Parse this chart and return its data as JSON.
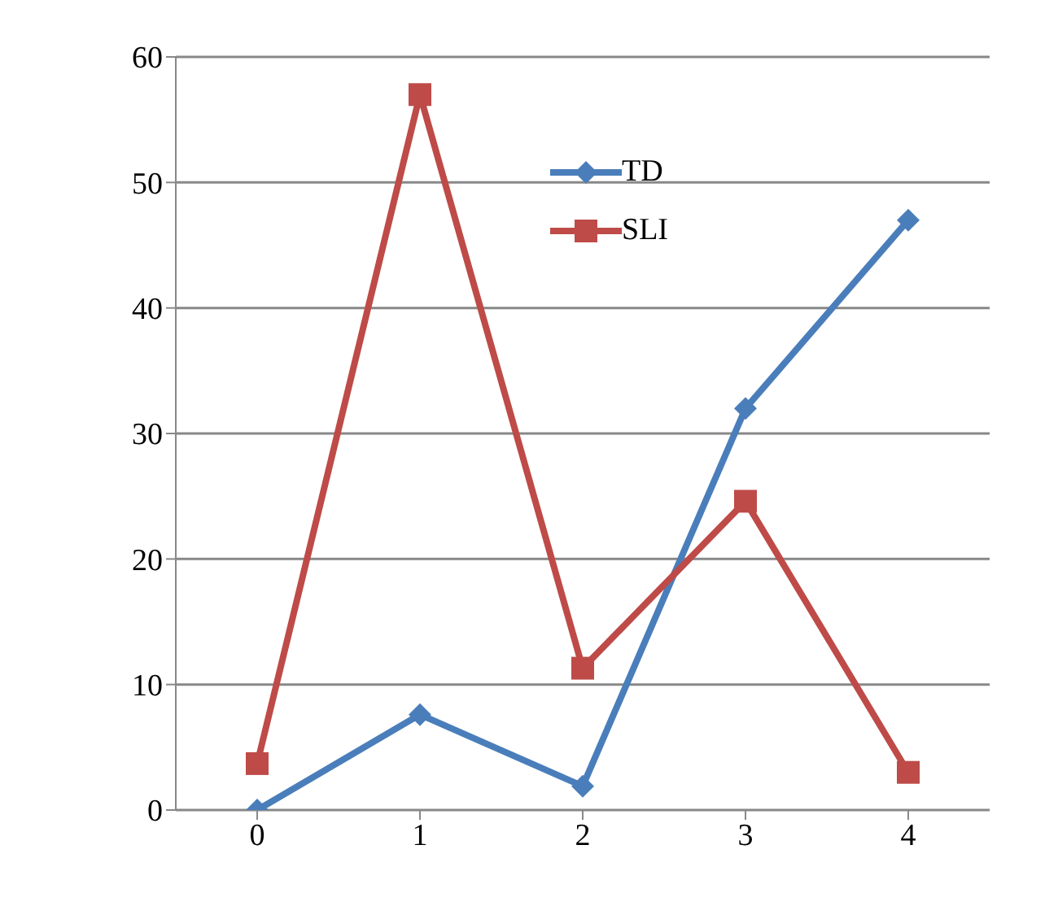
{
  "chart_data": {
    "type": "line",
    "categories": [
      "0",
      "1",
      "2",
      "3",
      "4"
    ],
    "series": [
      {
        "name": "TD",
        "color": "#4a7ebb",
        "marker": "diamond",
        "values": [
          0,
          7.6,
          1.9,
          32,
          47
        ]
      },
      {
        "name": "SLI",
        "color": "#be4b48",
        "marker": "square",
        "values": [
          3.7,
          57,
          11.3,
          24.6,
          3
        ]
      }
    ],
    "ylim": [
      0,
      60
    ],
    "yticks": [
      0,
      10,
      20,
      30,
      40,
      50,
      60
    ],
    "grid": "y",
    "legend": "top"
  }
}
